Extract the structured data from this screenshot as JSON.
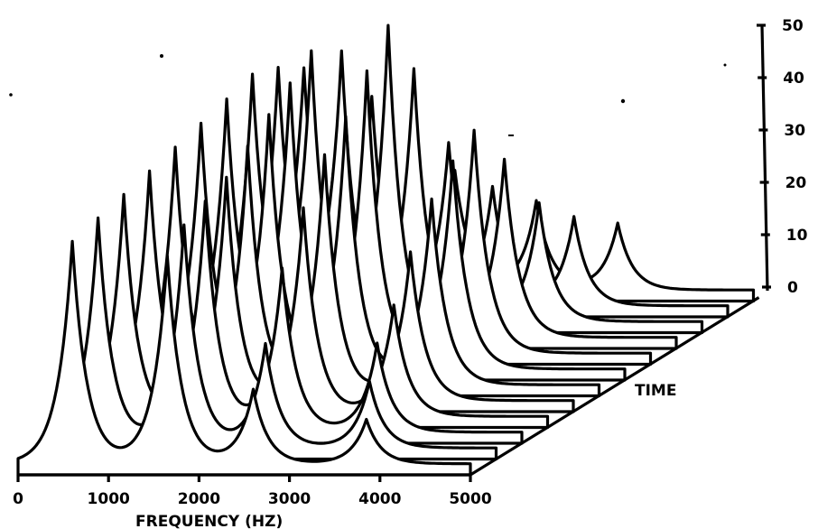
{
  "chart_data": {
    "type": "area",
    "view": "3d-waterfall",
    "x_axis": {
      "label": "FREQUENCY (HZ)",
      "ticks": [
        "0",
        "1000",
        "2000",
        "3000",
        "4000",
        "5000"
      ],
      "range": [
        0,
        5000
      ]
    },
    "z_axis": {
      "label": "",
      "ticks": [
        "0",
        "10",
        "20",
        "30",
        "40",
        "50"
      ],
      "range": [
        0,
        50
      ]
    },
    "time_axis": {
      "label": "TIME"
    },
    "slices": [
      {
        "peaks": [
          {
            "f": 600,
            "a": 30
          },
          {
            "f": 1650,
            "a": 28
          },
          {
            "f": 2600,
            "a": 10
          },
          {
            "f": 3850,
            "a": 6
          }
        ]
      },
      {
        "peaks": [
          {
            "f": 600,
            "a": 31
          },
          {
            "f": 1550,
            "a": 30
          },
          {
            "f": 2450,
            "a": 14
          },
          {
            "f": 3600,
            "a": 9
          }
        ]
      },
      {
        "peaks": [
          {
            "f": 600,
            "a": 32
          },
          {
            "f": 1500,
            "a": 31
          },
          {
            "f": 2350,
            "a": 22
          },
          {
            "f": 3400,
            "a": 12
          }
        ]
      },
      {
        "peaks": [
          {
            "f": 600,
            "a": 33
          },
          {
            "f": 1450,
            "a": 32
          },
          {
            "f": 2300,
            "a": 28
          },
          {
            "f": 3300,
            "a": 15
          }
        ]
      },
      {
        "peaks": [
          {
            "f": 600,
            "a": 34
          },
          {
            "f": 1400,
            "a": 34
          },
          {
            "f": 2250,
            "a": 33
          },
          {
            "f": 3200,
            "a": 20
          }
        ]
      },
      {
        "peaks": [
          {
            "f": 600,
            "a": 35
          },
          {
            "f": 1350,
            "a": 36
          },
          {
            "f": 2200,
            "a": 36
          },
          {
            "f": 3150,
            "a": 25
          }
        ]
      },
      {
        "peaks": [
          {
            "f": 600,
            "a": 36
          },
          {
            "f": 1300,
            "a": 38
          },
          {
            "f": 2150,
            "a": 40
          },
          {
            "f": 3100,
            "a": 28
          }
        ]
      },
      {
        "peaks": [
          {
            "f": 600,
            "a": 37
          },
          {
            "f": 1250,
            "a": 40
          },
          {
            "f": 2100,
            "a": 44
          },
          {
            "f": 3050,
            "a": 30
          }
        ]
      },
      {
        "peaks": [
          {
            "f": 600,
            "a": 36
          },
          {
            "f": 1300,
            "a": 38
          },
          {
            "f": 2100,
            "a": 36
          },
          {
            "f": 3100,
            "a": 24
          }
        ]
      },
      {
        "peaks": [
          {
            "f": 600,
            "a": 34
          },
          {
            "f": 1350,
            "a": 30
          },
          {
            "f": 2200,
            "a": 24
          },
          {
            "f": 3200,
            "a": 16
          }
        ]
      },
      {
        "peaks": [
          {
            "f": 700,
            "a": 26
          },
          {
            "f": 1500,
            "a": 22
          },
          {
            "f": 2400,
            "a": 16
          },
          {
            "f": 3300,
            "a": 12
          }
        ]
      },
      {
        "peaks": [
          {
            "f": 900,
            "a": 18
          },
          {
            "f": 1700,
            "a": 16
          },
          {
            "f": 2600,
            "a": 12
          },
          {
            "f": 3500,
            "a": 9
          }
        ]
      }
    ],
    "grid": false,
    "legend": "none"
  }
}
